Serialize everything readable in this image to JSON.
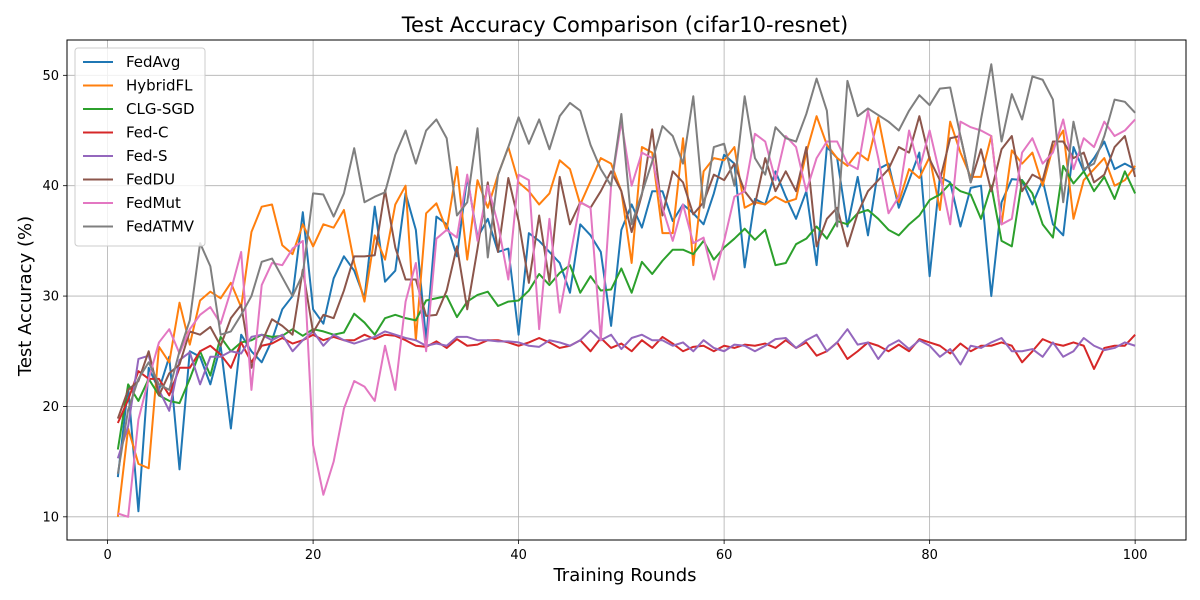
{
  "chart_data": {
    "type": "line",
    "title": "Test Accuracy Comparison (cifar10-resnet)",
    "xlabel": "Training Rounds",
    "ylabel": "Test Accuracy (%)",
    "xlim": [
      -3.95,
      104.95
    ],
    "ylim": [
      7.9,
      53.2
    ],
    "xticks": [
      0,
      20,
      40,
      60,
      80,
      100
    ],
    "yticks": [
      10,
      20,
      30,
      40,
      50
    ],
    "grid": true,
    "legend_position": "top-left",
    "x": [
      1,
      2,
      3,
      4,
      5,
      6,
      7,
      8,
      9,
      10,
      11,
      12,
      13,
      14,
      15,
      16,
      17,
      18,
      19,
      20,
      21,
      22,
      23,
      24,
      25,
      26,
      27,
      28,
      29,
      30,
      31,
      32,
      33,
      34,
      35,
      36,
      37,
      38,
      39,
      40,
      41,
      42,
      43,
      44,
      45,
      46,
      47,
      48,
      49,
      50,
      51,
      52,
      53,
      54,
      55,
      56,
      57,
      58,
      59,
      60,
      61,
      62,
      63,
      64,
      65,
      66,
      67,
      68,
      69,
      70,
      71,
      72,
      73,
      74,
      75,
      76,
      77,
      78,
      79,
      80,
      81,
      82,
      83,
      84,
      85,
      86,
      87,
      88,
      89,
      90,
      91,
      92,
      93,
      94,
      95,
      96,
      97,
      98,
      99,
      100
    ],
    "series": [
      {
        "name": "FedAvg",
        "color": "#1f77b4",
        "values": [
          13.6,
          21.8,
          10.5,
          23.5,
          21.5,
          24.5,
          14.3,
          25.0,
          24.5,
          22.0,
          25.5,
          18.0,
          26.5,
          25.0,
          24.0,
          26.0,
          28.8,
          30.0,
          37.6,
          28.8,
          27.5,
          31.6,
          33.6,
          32.3,
          29.8,
          38.1,
          31.3,
          32.3,
          39.3,
          36.0,
          26.0,
          37.2,
          36.5,
          33.6,
          40.8,
          35.3,
          37.0,
          34.0,
          34.3,
          26.5,
          35.7,
          35.0,
          34.0,
          33.0,
          30.3,
          36.5,
          35.5,
          34.0,
          27.3,
          36.0,
          38.3,
          36.2,
          39.5,
          39.5,
          36.8,
          38.3,
          37.5,
          36.5,
          39.3,
          42.8,
          42.0,
          32.6,
          38.8,
          38.3,
          41.3,
          39.0,
          37.0,
          39.5,
          32.8,
          43.5,
          42.5,
          36.3,
          40.8,
          35.5,
          41.5,
          42.0,
          38.0,
          40.5,
          43.0,
          31.8,
          40.8,
          40.3,
          36.3,
          39.8,
          40.0,
          30.0,
          38.5,
          40.6,
          40.5,
          38.3,
          40.5,
          36.5,
          35.5,
          43.5,
          41.3,
          42.5,
          44.0,
          41.5,
          42.0,
          41.5
        ]
      },
      {
        "name": "HybridFL",
        "color": "#ff7f0e",
        "values": [
          10.0,
          18.0,
          14.8,
          14.4,
          25.4,
          24.0,
          29.4,
          25.6,
          29.6,
          30.4,
          29.8,
          31.2,
          29.0,
          35.8,
          38.1,
          38.3,
          34.6,
          33.8,
          36.5,
          34.5,
          36.5,
          36.2,
          37.8,
          33.0,
          29.5,
          35.5,
          33.3,
          38.3,
          40.0,
          26.0,
          37.5,
          38.4,
          36.0,
          41.7,
          33.3,
          40.5,
          38.0,
          41.0,
          43.5,
          40.3,
          39.5,
          38.3,
          39.3,
          42.3,
          41.5,
          38.3,
          40.4,
          42.5,
          42.0,
          39.5,
          33.0,
          43.5,
          43.0,
          35.7,
          35.7,
          44.3,
          32.8,
          41.3,
          42.5,
          42.3,
          43.5,
          38.0,
          38.5,
          38.3,
          39.0,
          38.5,
          38.8,
          43.0,
          46.3,
          43.7,
          42.5,
          41.8,
          43.0,
          42.3,
          46.2,
          41.5,
          38.5,
          41.5,
          40.7,
          42.6,
          37.8,
          45.8,
          43.0,
          40.8,
          40.8,
          44.5,
          36.5,
          43.2,
          42.0,
          43.0,
          40.0,
          43.5,
          45.0,
          37.0,
          40.5,
          41.5,
          42.5,
          40.0,
          40.5,
          41.8
        ]
      },
      {
        "name": "CLG-SGD",
        "color": "#2ca02c",
        "values": [
          16.1,
          22.0,
          20.5,
          22.5,
          21.0,
          20.5,
          20.3,
          22.5,
          25.0,
          22.8,
          26.3,
          25.0,
          25.8,
          26.0,
          26.5,
          26.3,
          26.4,
          27.0,
          26.4,
          27.0,
          26.8,
          26.5,
          26.7,
          28.4,
          27.6,
          26.5,
          28.0,
          28.3,
          28.0,
          27.8,
          29.6,
          29.8,
          30.0,
          28.1,
          29.5,
          30.1,
          30.4,
          29.1,
          29.5,
          29.6,
          30.5,
          32.0,
          31.0,
          32.1,
          32.8,
          30.3,
          31.8,
          30.5,
          30.6,
          32.5,
          30.3,
          33.1,
          32.0,
          33.2,
          34.2,
          34.2,
          33.8,
          35.0,
          33.3,
          34.4,
          35.2,
          36.1,
          35.1,
          36.0,
          32.8,
          33.0,
          34.7,
          35.2,
          36.3,
          35.2,
          36.8,
          36.5,
          37.5,
          37.8,
          37.0,
          36.0,
          35.5,
          36.5,
          37.3,
          38.7,
          39.2,
          40.2,
          39.5,
          39.2,
          37.0,
          40.0,
          35.0,
          34.5,
          40.5,
          39.3,
          36.5,
          35.3,
          41.8,
          40.2,
          41.3,
          39.5,
          40.8,
          38.8,
          41.3,
          39.3
        ]
      },
      {
        "name": "Fed-C",
        "color": "#d62728",
        "values": [
          18.5,
          20.6,
          23.2,
          22.5,
          22.5,
          21.0,
          23.5,
          23.5,
          25.0,
          25.5,
          24.7,
          23.5,
          25.8,
          24.0,
          25.5,
          25.7,
          26.2,
          25.7,
          26.0,
          26.5,
          26.0,
          26.3,
          26.0,
          26.0,
          26.5,
          26.1,
          26.5,
          26.4,
          26.0,
          25.5,
          25.4,
          25.9,
          25.3,
          26.1,
          25.5,
          25.6,
          26.0,
          26.0,
          25.8,
          25.5,
          25.8,
          26.2,
          25.8,
          25.3,
          25.5,
          26.0,
          25.0,
          26.2,
          25.3,
          25.7,
          25.0,
          26.0,
          25.3,
          26.3,
          25.7,
          25.0,
          25.4,
          25.5,
          25.0,
          25.5,
          25.3,
          25.6,
          25.5,
          25.7,
          25.3,
          26.0,
          25.3,
          25.8,
          24.6,
          25.0,
          25.8,
          24.3,
          25.0,
          25.8,
          25.5,
          25.0,
          25.6,
          25.0,
          26.1,
          25.8,
          25.5,
          24.8,
          25.7,
          25.0,
          25.5,
          25.5,
          25.8,
          25.5,
          24.0,
          25.0,
          26.1,
          25.7,
          25.5,
          25.8,
          25.5,
          23.4,
          25.3,
          25.5,
          25.5,
          26.5
        ]
      },
      {
        "name": "Fed-S",
        "color": "#9467bd",
        "values": [
          15.3,
          18.2,
          24.3,
          24.6,
          21.5,
          19.6,
          24.2,
          24.9,
          22.0,
          24.5,
          24.5,
          25.0,
          24.8,
          26.3,
          26.5,
          26.0,
          26.5,
          25.0,
          26.0,
          26.8,
          25.5,
          26.5,
          26.0,
          25.7,
          26.0,
          26.3,
          26.8,
          26.5,
          26.2,
          26.0,
          25.5,
          25.7,
          25.5,
          26.3,
          26.3,
          26.0,
          26.0,
          25.9,
          25.9,
          25.8,
          25.5,
          25.4,
          26.0,
          25.8,
          25.5,
          26.0,
          26.9,
          26.0,
          26.5,
          25.2,
          26.2,
          26.5,
          26.0,
          26.0,
          25.5,
          25.8,
          25.0,
          26.0,
          25.3,
          25.0,
          25.6,
          25.5,
          25.0,
          25.5,
          26.1,
          26.2,
          25.3,
          26.0,
          26.5,
          25.0,
          25.8,
          27.0,
          25.6,
          25.8,
          24.3,
          25.5,
          26.0,
          25.2,
          26.0,
          25.5,
          24.5,
          25.2,
          23.8,
          25.5,
          25.3,
          25.8,
          26.2,
          25.0,
          25.0,
          25.2,
          24.5,
          25.8,
          24.5,
          25.0,
          26.2,
          25.5,
          25.1,
          25.3,
          25.8,
          25.5
        ]
      },
      {
        "name": "FedDU",
        "color": "#8c564b",
        "values": [
          18.9,
          21.5,
          22.3,
          25.0,
          21.0,
          23.0,
          23.8,
          26.8,
          26.5,
          27.2,
          25.5,
          28.0,
          29.2,
          23.5,
          25.8,
          27.9,
          27.3,
          26.5,
          32.4,
          26.7,
          28.3,
          28.0,
          30.5,
          33.6,
          33.6,
          33.7,
          39.6,
          34.4,
          31.5,
          31.5,
          28.2,
          28.3,
          30.5,
          34.5,
          28.8,
          34.3,
          40.3,
          34.0,
          40.7,
          36.8,
          31.2,
          37.3,
          31.3,
          40.8,
          36.5,
          38.5,
          38.0,
          39.5,
          41.3,
          39.5,
          35.8,
          39.2,
          45.1,
          37.3,
          41.3,
          40.3,
          37.4,
          38.5,
          41.0,
          40.5,
          42.0,
          39.5,
          38.3,
          42.5,
          39.5,
          41.3,
          39.5,
          43.5,
          34.5,
          37.0,
          38.0,
          34.5,
          37.5,
          39.5,
          40.5,
          41.5,
          43.5,
          43.0,
          46.3,
          42.4,
          40.5,
          44.3,
          44.5,
          40.3,
          43.3,
          39.5,
          43.3,
          44.5,
          39.5,
          41.0,
          40.5,
          44.0,
          44.0,
          42.5,
          43.0,
          40.3,
          41.0,
          43.5,
          44.5,
          40.8
        ]
      },
      {
        "name": "FedMut",
        "color": "#e377c2",
        "values": [
          10.3,
          10.0,
          18.8,
          22.5,
          25.8,
          27.0,
          24.8,
          27.0,
          28.3,
          29.0,
          27.5,
          30.5,
          34.0,
          21.5,
          31.0,
          33.0,
          32.8,
          34.3,
          35.0,
          16.5,
          12.0,
          15.0,
          19.8,
          22.3,
          21.8,
          20.5,
          25.5,
          21.5,
          29.5,
          33.0,
          25.0,
          35.2,
          36.0,
          35.3,
          41.0,
          35.0,
          40.0,
          36.5,
          31.5,
          41.0,
          40.5,
          27.0,
          37.0,
          28.5,
          33.5,
          38.5,
          38.0,
          26.0,
          40.0,
          45.8,
          40.0,
          43.0,
          42.5,
          38.0,
          35.0,
          38.3,
          34.8,
          35.3,
          31.5,
          35.0,
          39.0,
          39.5,
          44.7,
          44.0,
          40.5,
          44.5,
          43.5,
          39.5,
          42.5,
          44.0,
          44.0,
          42.0,
          41.5,
          46.8,
          42.5,
          37.5,
          39.0,
          45.0,
          41.5,
          45.0,
          41.0,
          36.5,
          45.8,
          45.3,
          45.0,
          44.5,
          36.5,
          37.0,
          43.0,
          44.3,
          42.0,
          43.0,
          46.0,
          41.5,
          44.3,
          43.5,
          45.8,
          44.5,
          45.0,
          46.0
        ]
      },
      {
        "name": "FedATMV",
        "color": "#7f7f7f",
        "values": [
          13.9,
          19.7,
          22.5,
          24.0,
          22.0,
          21.5,
          25.0,
          27.8,
          34.8,
          32.7,
          26.5,
          26.8,
          28.3,
          30.0,
          33.1,
          33.4,
          31.7,
          30.0,
          32.0,
          39.3,
          39.2,
          37.2,
          39.3,
          43.4,
          38.5,
          39.0,
          39.4,
          42.8,
          45.0,
          42.0,
          45.0,
          46.0,
          44.3,
          37.3,
          38.5,
          45.2,
          33.5,
          41.0,
          43.5,
          46.2,
          43.8,
          46.0,
          43.3,
          46.3,
          47.5,
          46.8,
          43.7,
          41.5,
          40.0,
          46.5,
          36.5,
          39.3,
          42.2,
          45.4,
          44.5,
          42.0,
          48.1,
          38.0,
          43.5,
          43.8,
          40.0,
          48.1,
          42.5,
          41.0,
          45.3,
          44.3,
          44.0,
          46.5,
          49.7,
          46.8,
          36.3,
          49.5,
          46.3,
          47.0,
          46.4,
          45.8,
          45.0,
          46.8,
          48.2,
          47.3,
          48.8,
          48.9,
          44.5,
          40.3,
          46.0,
          51.0,
          44.0,
          48.3,
          46.0,
          49.9,
          49.6,
          47.8,
          38.5,
          45.8,
          41.5,
          42.0,
          44.5,
          47.8,
          47.6,
          46.6
        ]
      }
    ]
  }
}
